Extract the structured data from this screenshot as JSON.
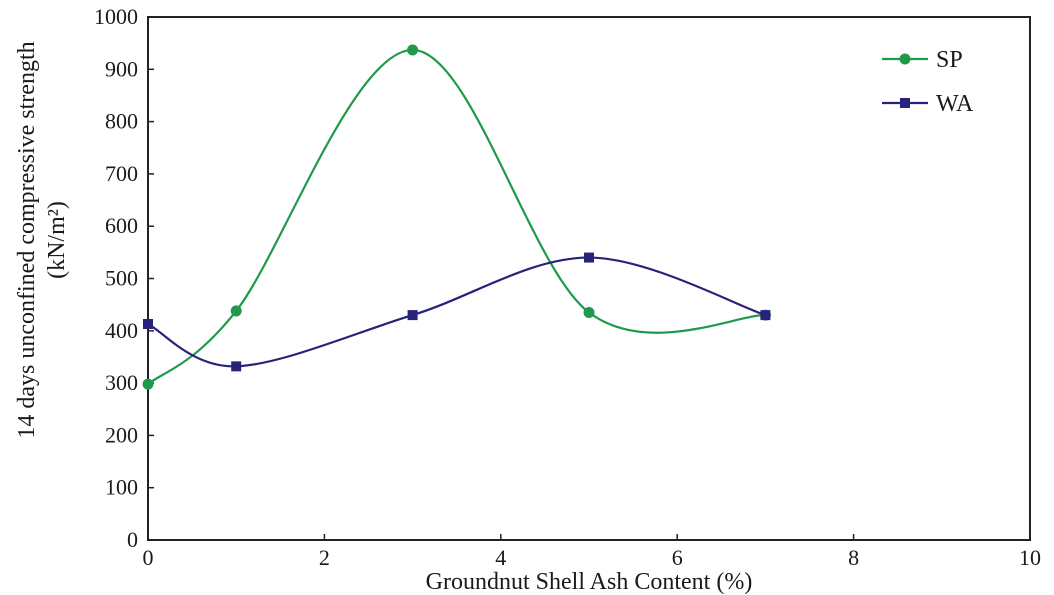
{
  "chart_data": {
    "type": "line",
    "xlabel": "Groundnut Shell Ash Content (%)",
    "ylabel_line1": "14 days unconfined compressive strength",
    "ylabel_line2": "(kN/m²)",
    "xlim": [
      0,
      10
    ],
    "ylim": [
      0,
      1000
    ],
    "xticks": [
      0,
      2,
      4,
      6,
      8,
      10
    ],
    "yticks": [
      0,
      100,
      200,
      300,
      400,
      500,
      600,
      700,
      800,
      900,
      1000
    ],
    "grid": false,
    "smooth": true,
    "legend_position": "top-right",
    "series": [
      {
        "name": "SP",
        "color": "#1e9a4a",
        "marker": "circle",
        "x": [
          0,
          1,
          3,
          5,
          7
        ],
        "y": [
          298,
          438,
          937,
          435,
          430
        ]
      },
      {
        "name": "WA",
        "color": "#28237a",
        "marker": "square",
        "x": [
          0,
          1,
          3,
          5,
          7
        ],
        "y": [
          413,
          332,
          430,
          540,
          430
        ]
      }
    ]
  }
}
